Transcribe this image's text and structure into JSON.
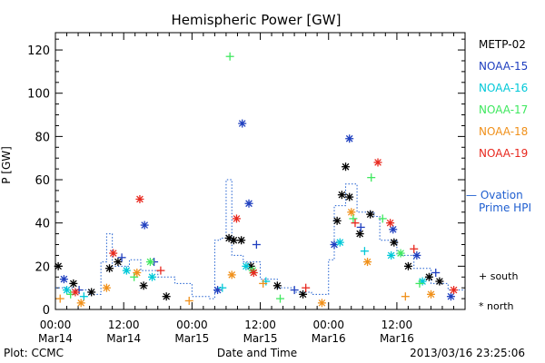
{
  "chart_data": {
    "type": "scatter",
    "title": "Hemispheric Power [GW]",
    "ylabel": "P [GW]",
    "xlabel": "Date and Time",
    "x_range": [
      "2013-03-14 00:00",
      "2013-03-16 23:59"
    ],
    "ylim": [
      0,
      128
    ],
    "y_ticks": [
      "0",
      "20",
      "40",
      "60",
      "80",
      "100",
      "120"
    ],
    "x_ticks": [
      {
        "time": "00:00",
        "date": "Mar14"
      },
      {
        "time": "12:00",
        "date": "Mar14"
      },
      {
        "time": "00:00",
        "date": "Mar15"
      },
      {
        "time": "12:00",
        "date": "Mar15"
      },
      {
        "time": "00:00",
        "date": "Mar16"
      },
      {
        "time": "12:00",
        "date": "Mar16"
      }
    ],
    "grid": false,
    "legend_position": "right",
    "series": [
      {
        "name": "METP-02",
        "color": "#000000",
        "points": [
          [
            "2013-03-14 00:30",
            20,
            "north"
          ],
          [
            "2013-03-14 03:10",
            12,
            "north"
          ],
          [
            "2013-03-14 06:20",
            8,
            "north"
          ],
          [
            "2013-03-14 09:30",
            19,
            "north"
          ],
          [
            "2013-03-14 11:00",
            22,
            "north"
          ],
          [
            "2013-03-14 15:30",
            11,
            "north"
          ],
          [
            "2013-03-14 19:30",
            6,
            "north"
          ],
          [
            "2013-03-15 06:30",
            33,
            "north"
          ],
          [
            "2013-03-15 07:20",
            32,
            "north"
          ],
          [
            "2013-03-15 08:40",
            32,
            "north"
          ],
          [
            "2013-03-15 10:20",
            20,
            "north"
          ],
          [
            "2013-03-15 15:00",
            11,
            "north"
          ],
          [
            "2013-03-15 19:30",
            7,
            "north"
          ],
          [
            "2013-03-16 01:30",
            41,
            "north"
          ],
          [
            "2013-03-16 02:20",
            53,
            "north"
          ],
          [
            "2013-03-16 03:00",
            66,
            "north"
          ],
          [
            "2013-03-16 03:40",
            52,
            "north"
          ],
          [
            "2013-03-16 05:30",
            35,
            "north"
          ],
          [
            "2013-03-16 07:20",
            44,
            "north"
          ],
          [
            "2013-03-16 11:30",
            31,
            "north"
          ],
          [
            "2013-03-16 14:00",
            20,
            "north"
          ],
          [
            "2013-03-16 17:40",
            15,
            "north"
          ],
          [
            "2013-03-16 19:30",
            13,
            "north"
          ]
        ]
      },
      {
        "name": "NOAA-15",
        "color": "#1f3fbf",
        "points": [
          [
            "2013-03-14 01:30",
            14,
            "north"
          ],
          [
            "2013-03-14 04:10",
            9,
            "south"
          ],
          [
            "2013-03-14 11:40",
            24,
            "south"
          ],
          [
            "2013-03-14 15:40",
            39,
            "north"
          ],
          [
            "2013-03-14 17:20",
            22,
            "south"
          ],
          [
            "2013-03-15 04:30",
            9,
            "north"
          ],
          [
            "2013-03-15 08:50",
            86,
            "north"
          ],
          [
            "2013-03-15 10:00",
            49,
            "north"
          ],
          [
            "2013-03-15 11:20",
            30,
            "south"
          ],
          [
            "2013-03-15 18:00",
            9,
            "south"
          ],
          [
            "2013-03-16 01:00",
            30,
            "north"
          ],
          [
            "2013-03-16 03:40",
            79,
            "north"
          ],
          [
            "2013-03-16 05:40",
            38,
            "south"
          ],
          [
            "2013-03-16 11:20",
            37,
            "north"
          ],
          [
            "2013-03-16 15:30",
            25,
            "north"
          ],
          [
            "2013-03-16 18:50",
            17,
            "south"
          ],
          [
            "2013-03-16 21:30",
            6,
            "north"
          ]
        ]
      },
      {
        "name": "NOAA-16",
        "color": "#00c8d8",
        "points": [
          [
            "2013-03-14 02:00",
            9,
            "north"
          ],
          [
            "2013-03-14 05:00",
            6,
            "south"
          ],
          [
            "2013-03-14 12:30",
            18,
            "north"
          ],
          [
            "2013-03-14 17:00",
            15,
            "north"
          ],
          [
            "2013-03-15 05:20",
            10,
            "south"
          ],
          [
            "2013-03-15 09:30",
            20,
            "north"
          ],
          [
            "2013-03-15 13:00",
            13,
            "south"
          ],
          [
            "2013-03-16 02:00",
            31,
            "north"
          ],
          [
            "2013-03-16 06:20",
            27,
            "south"
          ],
          [
            "2013-03-16 11:00",
            25,
            "north"
          ],
          [
            "2013-03-16 16:30",
            13,
            "north"
          ]
        ]
      },
      {
        "name": "NOAA-17",
        "color": "#3fe85f",
        "points": [
          [
            "2013-03-14 02:40",
            7,
            "south"
          ],
          [
            "2013-03-14 13:50",
            15,
            "south"
          ],
          [
            "2013-03-14 16:40",
            22,
            "north"
          ],
          [
            "2013-03-15 06:40",
            117,
            "south"
          ],
          [
            "2013-03-15 10:40",
            18,
            "north"
          ],
          [
            "2013-03-15 15:30",
            5,
            "south"
          ],
          [
            "2013-03-16 04:20",
            42,
            "south"
          ],
          [
            "2013-03-16 07:30",
            61,
            "south"
          ],
          [
            "2013-03-16 09:30",
            42,
            "south"
          ],
          [
            "2013-03-16 12:40",
            26,
            "north"
          ],
          [
            "2013-03-16 16:00",
            12,
            "south"
          ]
        ]
      },
      {
        "name": "NOAA-18",
        "color": "#f0901a",
        "points": [
          [
            "2013-03-14 00:50",
            5,
            "south"
          ],
          [
            "2013-03-14 04:30",
            3,
            "north"
          ],
          [
            "2013-03-14 09:00",
            10,
            "north"
          ],
          [
            "2013-03-14 14:20",
            17,
            "north"
          ],
          [
            "2013-03-14 23:30",
            4,
            "south"
          ],
          [
            "2013-03-15 07:00",
            16,
            "north"
          ],
          [
            "2013-03-15 12:30",
            12,
            "south"
          ],
          [
            "2013-03-15 22:50",
            3,
            "north"
          ],
          [
            "2013-03-16 04:00",
            45,
            "north"
          ],
          [
            "2013-03-16 06:50",
            22,
            "north"
          ],
          [
            "2013-03-16 13:30",
            6,
            "south"
          ],
          [
            "2013-03-16 18:00",
            7,
            "north"
          ]
        ]
      },
      {
        "name": "NOAA-19",
        "color": "#e8281e",
        "points": [
          [
            "2013-03-14 03:30",
            8,
            "north"
          ],
          [
            "2013-03-14 10:10",
            26,
            "north"
          ],
          [
            "2013-03-14 14:50",
            51,
            "north"
          ],
          [
            "2013-03-14 18:30",
            18,
            "south"
          ],
          [
            "2013-03-15 07:50",
            42,
            "north"
          ],
          [
            "2013-03-15 10:50",
            17,
            "north"
          ],
          [
            "2013-03-15 20:00",
            10,
            "south"
          ],
          [
            "2013-03-16 04:40",
            40,
            "south"
          ],
          [
            "2013-03-16 08:40",
            68,
            "north"
          ],
          [
            "2013-03-16 10:50",
            40,
            "north"
          ],
          [
            "2013-03-16 15:00",
            28,
            "south"
          ],
          [
            "2013-03-16 22:00",
            9,
            "north"
          ]
        ]
      }
    ],
    "ovation": {
      "name": "Ovation Prime HPI",
      "color": "#1f5fd0",
      "points": [
        [
          "2013-03-14 00:00",
          10
        ],
        [
          "2013-03-14 03:00",
          9
        ],
        [
          "2013-03-14 06:00",
          7
        ],
        [
          "2013-03-14 08:00",
          22
        ],
        [
          "2013-03-14 09:00",
          35
        ],
        [
          "2013-03-14 10:00",
          20
        ],
        [
          "2013-03-14 13:00",
          23
        ],
        [
          "2013-03-14 15:00",
          18
        ],
        [
          "2013-03-14 18:00",
          15
        ],
        [
          "2013-03-14 21:00",
          12
        ],
        [
          "2013-03-15 00:00",
          6
        ],
        [
          "2013-03-15 03:00",
          5
        ],
        [
          "2013-03-15 04:00",
          32
        ],
        [
          "2013-03-15 05:00",
          33
        ],
        [
          "2013-03-15 06:00",
          60
        ],
        [
          "2013-03-15 07:00",
          25
        ],
        [
          "2013-03-15 09:00",
          22
        ],
        [
          "2013-03-15 12:00",
          14
        ],
        [
          "2013-03-15 15:00",
          10
        ],
        [
          "2013-03-15 18:00",
          8
        ],
        [
          "2013-03-15 21:00",
          7
        ],
        [
          "2013-03-16 00:00",
          23
        ],
        [
          "2013-03-16 01:00",
          48
        ],
        [
          "2013-03-16 03:00",
          58
        ],
        [
          "2013-03-16 05:00",
          45
        ],
        [
          "2013-03-16 08:00",
          43
        ],
        [
          "2013-03-16 09:00",
          32
        ],
        [
          "2013-03-16 12:00",
          25
        ],
        [
          "2013-03-16 15:00",
          19
        ],
        [
          "2013-03-16 18:00",
          12
        ],
        [
          "2013-03-16 21:00",
          9
        ]
      ]
    }
  },
  "legend": [
    {
      "label": "METP-02",
      "color": "#000000"
    },
    {
      "label": "NOAA-15",
      "color": "#1f3fbf"
    },
    {
      "label": "NOAA-16",
      "color": "#00c8d8"
    },
    {
      "label": "NOAA-17",
      "color": "#3fe85f"
    },
    {
      "label": "NOAA-18",
      "color": "#f0901a"
    },
    {
      "label": "NOAA-19",
      "color": "#e8281e"
    }
  ],
  "ovation_legend": {
    "line1": "— Ovation",
    "line2": "Prime HPI"
  },
  "markers_note": {
    "south": "+ south",
    "north": "* north"
  },
  "footer": {
    "plot_credit": "Plot: CCMC",
    "timestamp": "2013/03/16 23:25:06"
  }
}
